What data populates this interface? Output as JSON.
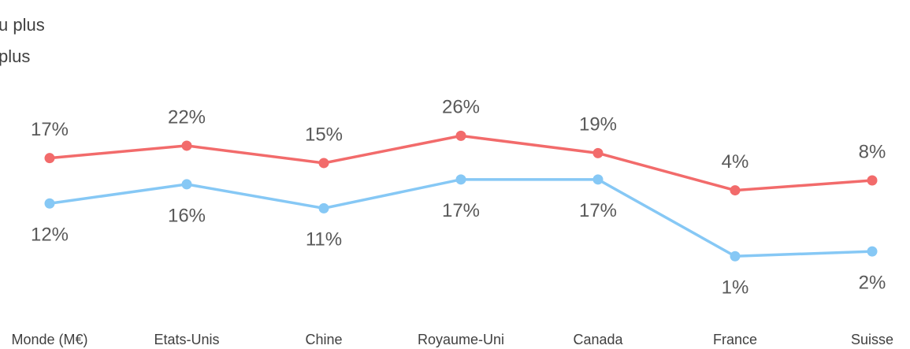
{
  "chart_data": {
    "type": "line",
    "categories": [
      "Monde (M€)",
      "Etats-Unis",
      "Chine",
      "Royaume-Uni",
      "Canada",
      "France",
      "Suisse"
    ],
    "series": [
      {
        "name": "u plus",
        "color": "#f26b6b",
        "values": [
          17,
          22,
          15,
          26,
          19,
          4,
          8
        ],
        "value_labels": [
          "17%",
          "22%",
          "15%",
          "26%",
          "19%",
          "4%",
          "8%"
        ],
        "axis": "y"
      },
      {
        "name": "plus",
        "color": "#86c8f5",
        "values": [
          12,
          16,
          11,
          17,
          17,
          1,
          2
        ],
        "value_labels": [
          "12%",
          "16%",
          "11%",
          "17%",
          "17%",
          "1%",
          "2%"
        ],
        "axis": "y2"
      }
    ],
    "ylim": [
      -40,
      49
    ],
    "y2lim": [
      -8,
      38
    ],
    "grid": false
  }
}
